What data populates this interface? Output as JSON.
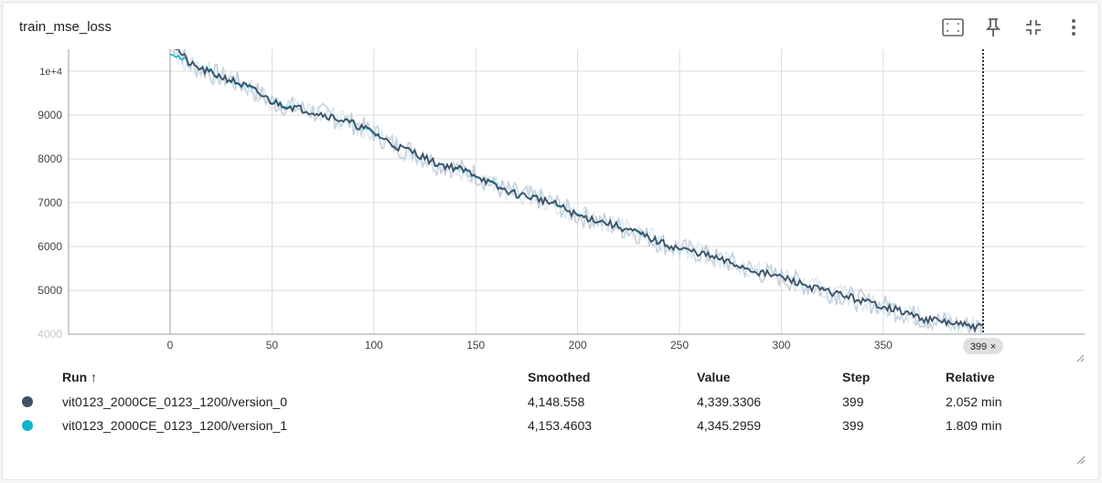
{
  "card": {
    "title": "train_mse_loss"
  },
  "toolbar": {
    "fit_icon": "fit-to-data-icon",
    "pin_icon": "pin-icon",
    "collapse_icon": "collapse-icon",
    "more_icon": "more-vert-icon"
  },
  "chart_data": {
    "type": "line",
    "xlabel": "",
    "ylabel": "",
    "x_ticks": [
      "0",
      "50",
      "100",
      "150",
      "200",
      "250",
      "300",
      "350"
    ],
    "y_ticks": [
      "1e+4",
      "9000",
      "8000",
      "7000",
      "6000",
      "5000",
      "4000"
    ],
    "xlim": [
      -50,
      450
    ],
    "ylim": [
      4000,
      10600
    ],
    "hover_step": 399,
    "hover_label": "399",
    "grid": true,
    "series": [
      {
        "name": "vit0123_2000CE_0123_1200/version_0",
        "color": "#425066",
        "raw_color": "#c5d0dc",
        "points": [
          [
            0,
            10700
          ],
          [
            10,
            10150
          ],
          [
            20,
            9950
          ],
          [
            30,
            9800
          ],
          [
            40,
            9600
          ],
          [
            50,
            9300
          ],
          [
            60,
            9180
          ],
          [
            70,
            9080
          ],
          [
            80,
            8950
          ],
          [
            90,
            8800
          ],
          [
            100,
            8600
          ],
          [
            110,
            8300
          ],
          [
            120,
            8150
          ],
          [
            130,
            7900
          ],
          [
            140,
            7800
          ],
          [
            150,
            7650
          ],
          [
            160,
            7350
          ],
          [
            170,
            7200
          ],
          [
            180,
            7100
          ],
          [
            190,
            6950
          ],
          [
            200,
            6700
          ],
          [
            210,
            6600
          ],
          [
            220,
            6450
          ],
          [
            230,
            6300
          ],
          [
            240,
            6100
          ],
          [
            250,
            5950
          ],
          [
            260,
            5850
          ],
          [
            270,
            5700
          ],
          [
            280,
            5550
          ],
          [
            290,
            5400
          ],
          [
            300,
            5300
          ],
          [
            310,
            5150
          ],
          [
            320,
            5000
          ],
          [
            330,
            4900
          ],
          [
            340,
            4750
          ],
          [
            350,
            4650
          ],
          [
            360,
            4500
          ],
          [
            370,
            4350
          ],
          [
            380,
            4280
          ],
          [
            390,
            4200
          ],
          [
            399,
            4148.558
          ]
        ]
      },
      {
        "name": "vit0123_2000CE_0123_1200/version_1",
        "color": "#12b5cb",
        "points": [
          [
            0,
            10450
          ],
          [
            10,
            10150
          ],
          [
            20,
            9980
          ],
          [
            30,
            9780
          ],
          [
            40,
            9580
          ],
          [
            50,
            9320
          ],
          [
            60,
            9200
          ],
          [
            70,
            9070
          ],
          [
            80,
            8960
          ],
          [
            90,
            8780
          ],
          [
            100,
            8580
          ],
          [
            110,
            8320
          ],
          [
            120,
            8130
          ],
          [
            130,
            7920
          ],
          [
            140,
            7780
          ],
          [
            150,
            7630
          ],
          [
            160,
            7380
          ],
          [
            170,
            7180
          ],
          [
            180,
            7120
          ],
          [
            190,
            6930
          ],
          [
            200,
            6720
          ],
          [
            210,
            6590
          ],
          [
            220,
            6470
          ],
          [
            230,
            6280
          ],
          [
            240,
            6120
          ],
          [
            250,
            5940
          ],
          [
            260,
            5860
          ],
          [
            270,
            5690
          ],
          [
            280,
            5560
          ],
          [
            290,
            5390
          ],
          [
            300,
            5310
          ],
          [
            310,
            5140
          ],
          [
            320,
            5010
          ],
          [
            330,
            4890
          ],
          [
            340,
            4760
          ],
          [
            350,
            4640
          ],
          [
            360,
            4510
          ],
          [
            370,
            4340
          ],
          [
            380,
            4290
          ],
          [
            390,
            4190
          ],
          [
            399,
            4153.4603
          ]
        ]
      }
    ]
  },
  "table": {
    "headers": {
      "run": "Run ↑",
      "smoothed": "Smoothed",
      "value": "Value",
      "step": "Step",
      "relative": "Relative"
    },
    "rows": [
      {
        "color": "#425066",
        "run": "vit0123_2000CE_0123_1200/version_0",
        "smoothed": "4,148.558",
        "value": "4,339.3306",
        "step": "399",
        "relative": "2.052 min"
      },
      {
        "color": "#12b5cb",
        "run": "vit0123_2000CE_0123_1200/version_1",
        "smoothed": "4,153.4603",
        "value": "4,345.2959",
        "step": "399",
        "relative": "1.809 min"
      }
    ]
  }
}
